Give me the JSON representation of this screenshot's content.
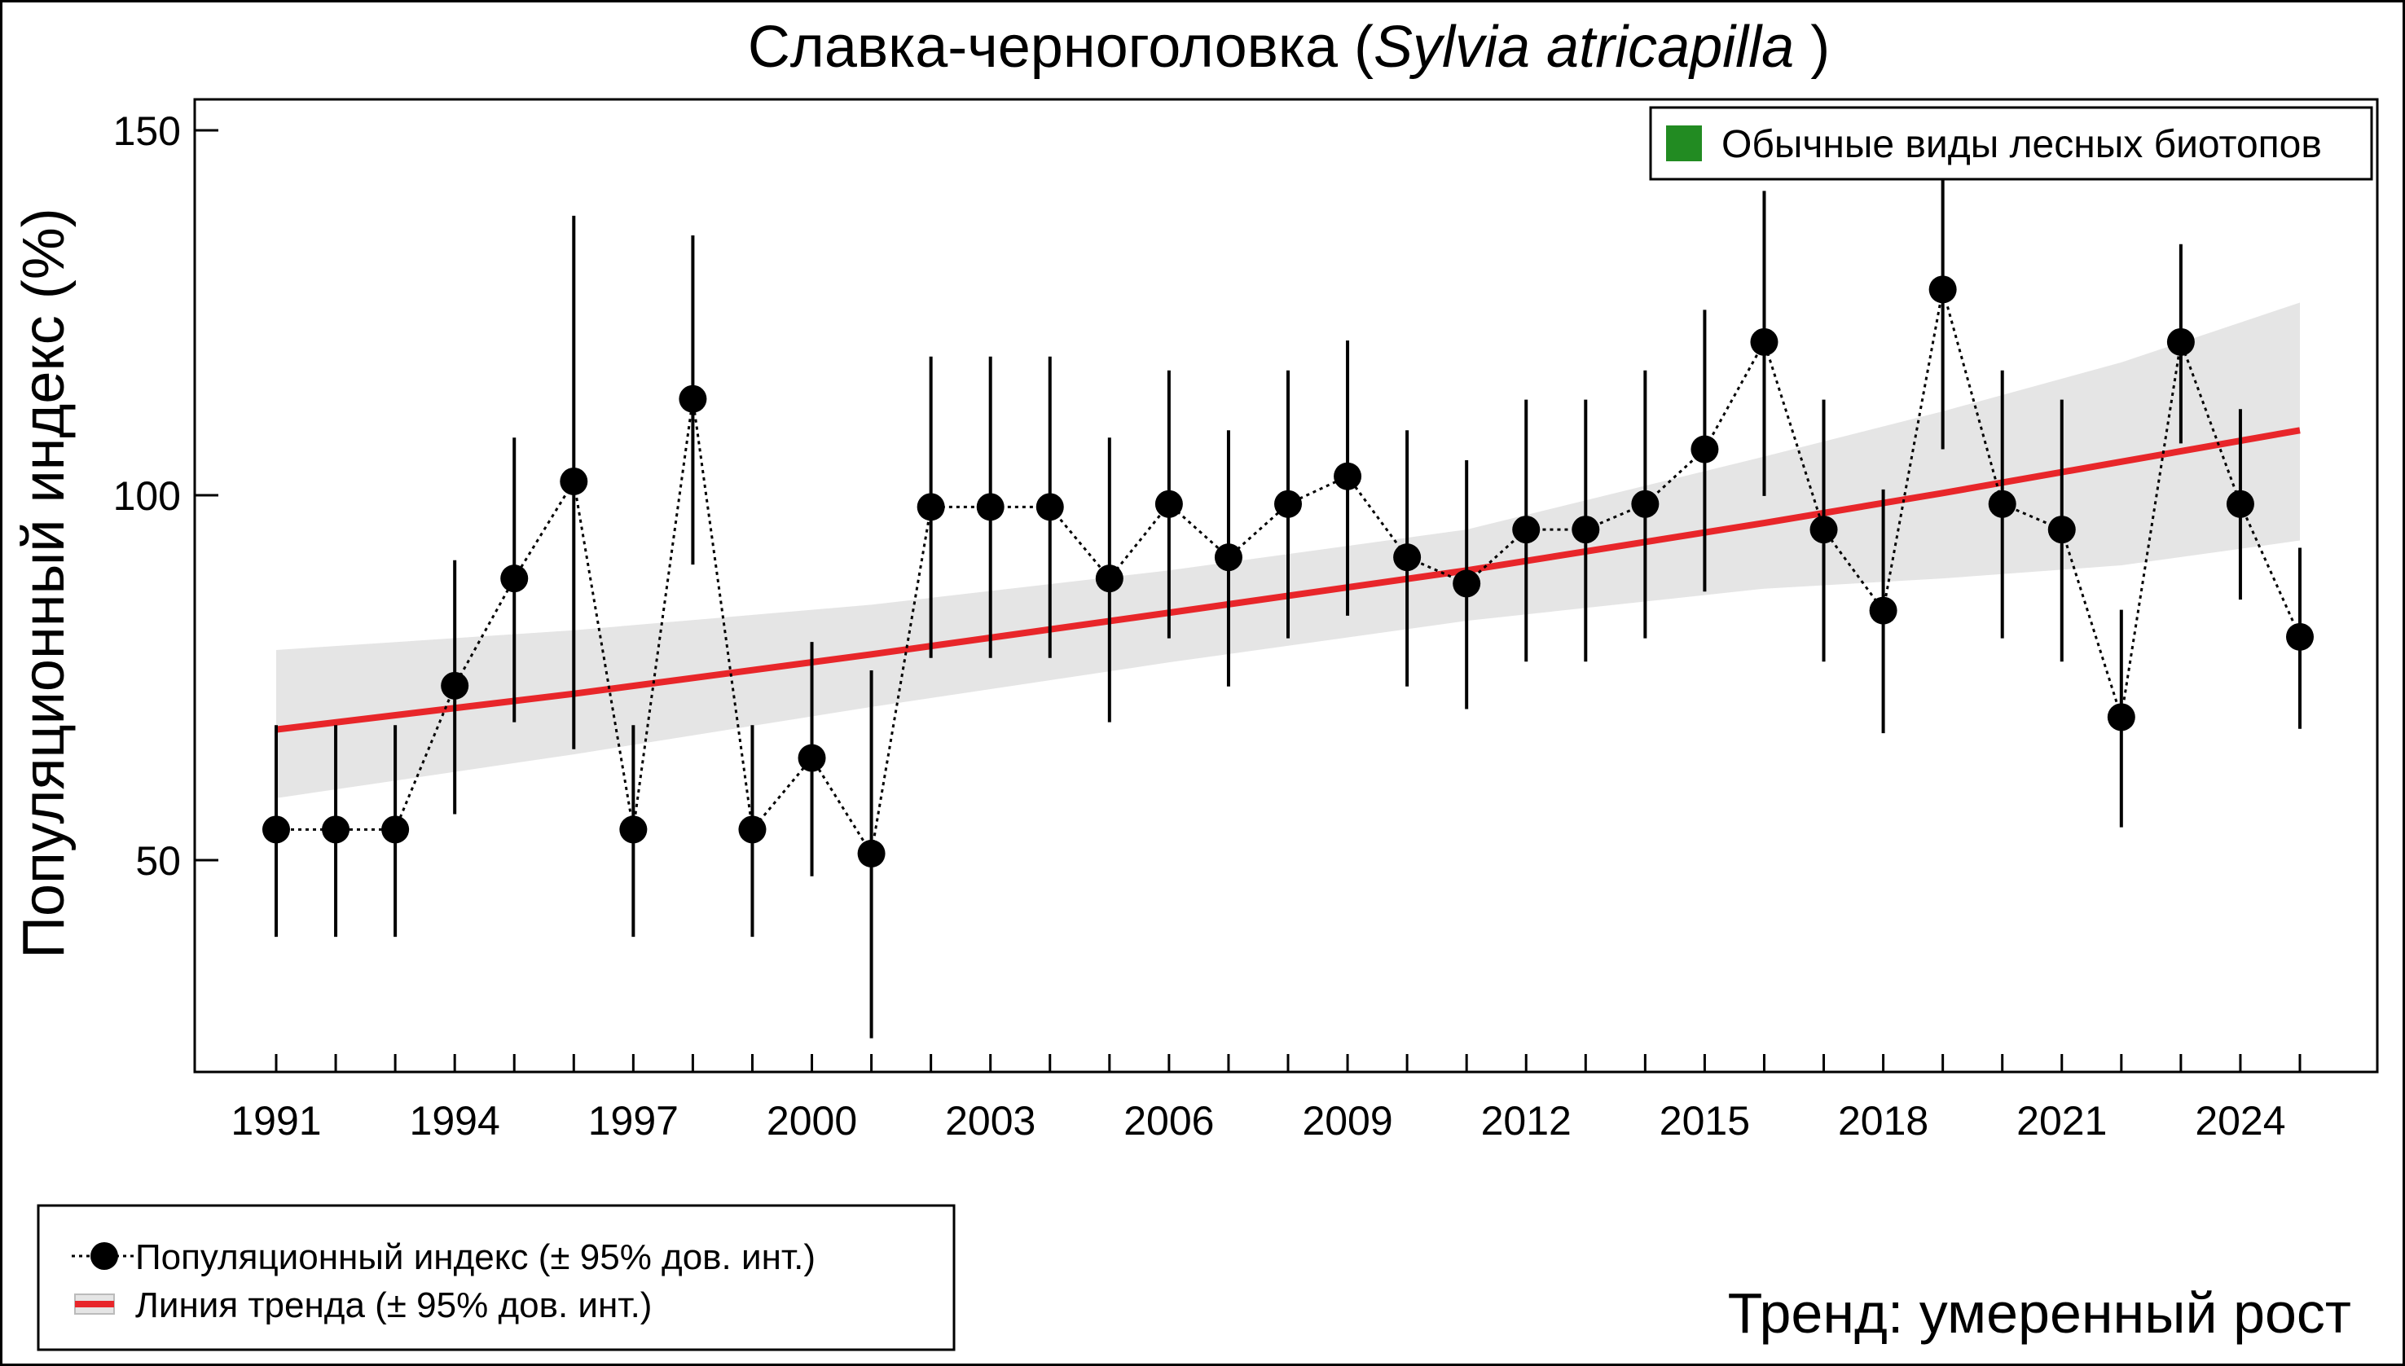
{
  "chart_data": {
    "type": "line",
    "title": "Славка-черноголовка",
    "title_latin": "Sylvia atricapilla",
    "xlabel": "",
    "ylabel": "Популяционный индекс (%)",
    "ylim": [
      25,
      155
    ],
    "xlim": [
      1987,
      2026.3
    ],
    "yticks": [
      50,
      100,
      150
    ],
    "xticks": [
      1991,
      1994,
      1997,
      2000,
      2003,
      2006,
      2009,
      2012,
      2015,
      2018,
      2021,
      2024
    ],
    "grid": false,
    "series": [
      {
        "name": "Популяционный индекс (± 95% дов. инт.)",
        "x": [
          1991,
          1992,
          1993,
          1994,
          1995,
          1996,
          1997,
          1998,
          1999,
          2000,
          2001,
          2002,
          2003,
          2004,
          2005,
          2006,
          2007,
          2008,
          2009,
          2010,
          2011,
          2012,
          2013,
          2014,
          2015,
          2016,
          2017,
          2018,
          2019,
          2020,
          2021,
          2022,
          2023,
          2024,
          2025
        ],
        "y": [
          54.2,
          54.2,
          54.2,
          73.9,
          88.6,
          101.9,
          54.2,
          113.2,
          54.2,
          64.0,
          50.9,
          98.4,
          98.4,
          98.4,
          88.6,
          98.8,
          91.5,
          98.8,
          102.6,
          91.5,
          87.9,
          95.3,
          95.3,
          98.8,
          106.3,
          121.0,
          95.3,
          84.2,
          128.2,
          98.8,
          95.3,
          69.6,
          121.0,
          98.8,
          80.6
        ],
        "lower": [
          39.5,
          39.5,
          39.5,
          56.3,
          68.9,
          65.2,
          39.5,
          90.5,
          39.5,
          47.8,
          25.6,
          77.7,
          77.7,
          77.7,
          68.9,
          80.4,
          73.8,
          80.4,
          83.5,
          73.8,
          70.7,
          77.2,
          77.2,
          80.4,
          86.8,
          99.9,
          77.2,
          67.4,
          106.3,
          80.4,
          77.2,
          54.5,
          107.1,
          85.7,
          68.0
        ],
        "upper": [
          68.5,
          68.5,
          68.5,
          91.1,
          107.9,
          138.3,
          68.5,
          135.6,
          68.5,
          79.9,
          76.0,
          119.0,
          119.0,
          119.0,
          107.9,
          117.1,
          108.9,
          117.1,
          121.2,
          108.9,
          104.8,
          113.1,
          113.1,
          117.1,
          125.4,
          141.7,
          113.1,
          100.8,
          145.0,
          117.1,
          113.1,
          84.3,
          134.4,
          111.8,
          92.8
        ]
      },
      {
        "name": "Линия тренда (± 95% дов. инт.)",
        "x": [
          1991,
          1996,
          2001,
          2006,
          2011,
          2016,
          2019,
          2022,
          2025
        ],
        "y": [
          67.9,
          72.8,
          78.2,
          83.9,
          89.7,
          96.2,
          100.3,
          104.6,
          108.9
        ],
        "lower": [
          58.5,
          64.5,
          71.0,
          77.1,
          82.8,
          87.2,
          88.6,
          90.4,
          93.8
        ],
        "upper": [
          78.8,
          81.5,
          85.0,
          89.7,
          95.3,
          105.3,
          111.5,
          118.2,
          126.4
        ]
      }
    ],
    "group_legend": "Обычные виды лесных биотопов",
    "trend_label": "Тренд: умеренный рост",
    "colors": {
      "points": "#000000",
      "trend": "#e8262a",
      "band": "#e5e5e5",
      "group": "#228b22",
      "trend_text": "#1a9a1a"
    }
  }
}
